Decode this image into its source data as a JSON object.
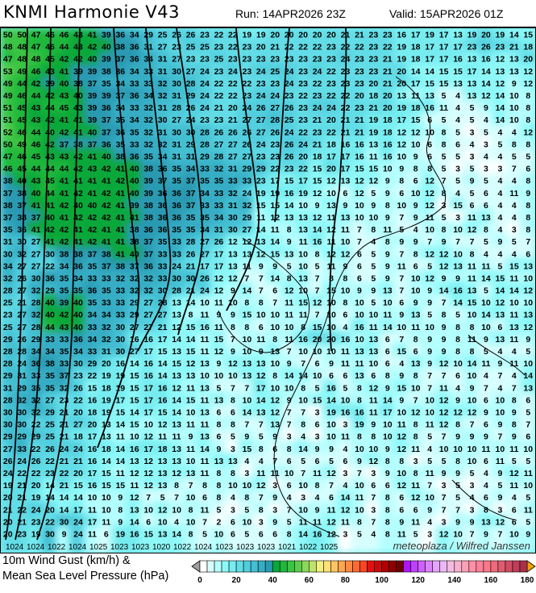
{
  "header": {
    "title": "KNMI Harmonie V43",
    "run": "Run: 14APR2026 23Z",
    "valid": "Valid: 15APR2026 01Z"
  },
  "map": {
    "credit": "meteoplaza / Wilfred Janssen",
    "gust_values_kmh": [
      "50 50 47 46 46 43 41 39 36 34 29 25 26 26 23 22 22 19 19 20 20 20 20 20 21 21 23 23 16 17 19 17 13 19 20 19 14 15",
      "48 48 47 46 44 43 42 40 38 36 31 27 23 25 25 23 22 23 20 21 22 22 22 23 22 22 23 22 19 18 17 17 17 23 26 23 21 18",
      "47 48 48 45 42 42 40 39 37 36 34 31 27 23 23 25 23 23 23 23 23 23 23 23 24 23 23 21 19 18 17 17 16 13 16 12 13 20",
      "53 49 46 43 41 39 39 38 36 34 33 31 30 27 24 23 24 23 24 25 24 23 24 22 23 23 23 21 20 14 14 15 15 17 14 13 13 12",
      "49 44 42 39 40 38 37 35 34 33 33 32 30 28 24 22 22 22 23 23 24 23 22 23 23 23 20 21 20 17 15 15 13 13 14 12 9 12",
      "49 46 44 42 43 40 39 39 37 36 34 32 31 29 24 22 22 23 24 24 23 22 23 22 22 20 18 20 13 11 13 5 4 13 12 14 10 8",
      "51 45 43 44 45 43 39 36 34 33 32 31 28 26 24 21 20 24 26 27 26 23 24 24 22 23 21 20 19 18 16 11 4 5 9 14 10 8",
      "51 45 43 42 41 41 39 37 35 34 32 30 27 24 23 23 21 27 27 28 25 23 21 20 21 21 19 18 17 15 6 5 4 5 4 14 10 8",
      "52 46 44 40 42 41 40 37 36 35 32 31 30 30 28 26 26 26 27 26 24 22 23 22 21 21 19 18 12 12 10 8 5 3 5 4 4 12",
      "50 49 46 42 37 38 37 36 35 33 32 32 31 29 28 27 27 26 24 23 26 24 21 18 16 16 13 16 12 10 6 8 6 4 3 5 8 8",
      "47 46 45 43 43 42 41 40 38 36 35 34 31 31 29 28 27 27 23 23 26 20 18 17 17 16 11 16 10 9 6 5 5 3 4 4 5 5",
      "46 45 44 44 44 42 43 42 41 40 38 36 35 34 33 32 31 29 29 22 23 22 15 20 17 15 15 10 9 8 8 5 3 5 3 3 7 6",
      "38 40 43 45 41 41 41 41 42 40 39 37 35 37 35 35 33 33 23 17 15 17 15 12 13 12 12 9 8 6 12 7 5 9 5 4 4 8",
      "37 38 40 44 41 42 41 42 41 40 39 36 36 37 34 33 32 24 19 19 16 19 12 10 6 12 5 9 6 10 12 8 4 5 6 4 11 9",
      "38 37 41 41 42 40 40 42 41 39 38 36 36 37 33 33 31 32 15 15 14 10 9 13 9 10 9 8 10 9 12 3 15 6 6 4 4 8",
      "37 38 37 40 41 42 42 42 41 41 38 36 36 35 35 34 30 29 11 12 13 13 12 11 13 10 10 9 7 9 11 5 3 11 13 4 4 8",
      "35 36 41 42 42 41 42 41 41 38 36 36 35 35 34 31 30 27 14 11 8 13 14 12 11 7 8 11 5 4 10 8 10 12 8 4 3 8",
      "31 30 27 41 42 41 42 41 41 38 37 35 33 28 27 26 12 12 13 14 9 11 16 11 10 7 4 8 9 9 7 9 7 7 5 9 5 7",
      "30 32 27 30 38 38 37 38 41 40 37 33 33 26 27 17 13 13 12 15 13 10 8 12 12 6 5 9 7 8 12 12 10 8 4 4 4 6",
      "34 27 27 22 34 36 35 37 38 37 36 33 24 21 17 17 13 11 9 9 5 10 5 11 9 6 5 9 11 6 5 12 13 11 11 5 15 13",
      "32 26 30 36 35 34 33 33 32 32 32 33 30 30 26 12 12 7 7 14 8 13 7 8 8 6 5 9 7 10 12 9 9 11 14 15 11 10",
      "28 27 32 29 35 35 36 35 33 32 32 30 28 21 24 12 9 14 7 6 12 10 7 15 10 9 9 13 7 10 9 14 16 13 5 14 14 12",
      "25 21 28 40 39 40 35 33 33 29 27 28 13 14 10 11 10 8 8 7 11 15 12 10 8 10 5 10 6 9 9 7 14 15 10 12 10 10",
      "23 27 32 40 42 40 34 34 33 29 27 27 13 8 11 9 9 15 10 10 11 11 7 10 6 10 10 11 9 13 5 8 5 10 14 13 11 13",
      "25 27 28 44 43 40 33 32 30 27 27 21 12 15 16 11 8 8 6 10 10 8 15 10 4 16 11 14 10 11 10 9 8 8 10 6 13 12",
      "29 26 29 33 33 36 34 32 30 16 16 17 14 14 11 15 7 10 11 8 11 16 20 20 16 10 13 6 7 8 9 9 8 11 9 13 11 9",
      "28 28 34 34 35 34 33 31 30 27 17 15 13 15 11 12 9 10 9 13 7 10 10 10 11 13 13 6 15 6 9 9 8 8 5 4 4 5",
      "28 24 36 38 33 30 29 20 16 14 16 14 15 12 13 9 12 13 13 10 9 7 6 9 11 11 10 6 4 13 9 12 10 14 11 9 11 10",
      "29 31 33 35 37 23 22 19 19 15 16 14 13 13 10 10 10 13 12 8 14 14 10 6 6 13 6 8 9 8 7 7 6 10 4 7 4 14",
      "31 29 35 35 32 26 15 18 19 15 17 16 12 11 13 5 7 7 17 10 10 8 5 16 5 8 12 9 15 10 7 11 4 9 7 4 7 13",
      "28 32 32 27 23 22 16 19 17 15 17 16 14 15 11 13 8 10 14 12 9 10 15 14 10 8 11 14 9 7 10 12 9 10 6 10 8 6",
      "30 30 32 29 21 20 18 19 15 14 17 15 14 10 13 6 6 14 13 12 7 7 3 19 16 16 11 17 10 12 10 12 12 12 9 10 9 5",
      "30 30 22 25 21 27 20 13 14 15 10 12 13 11 11 8 8 7 7 13 7 8 6 10 3 19 9 10 11 8 11 12 8 7 6 9 8 7",
      "29 29 29 25 21 18 17 13 11 10 12 11 11 9 13 6 5 9 5 9 3 4 3 10 11 8 8 10 12 8 5 7 9 9 9 7 9 6",
      "27 33 22 26 24 24 16 18 14 16 17 18 13 11 14 9 3 15 8 6 8 14 9 9 4 10 10 9 12 11 4 10 10 10 11 10 11 10",
      "26 24 26 22 21 21 16 14 14 13 12 13 13 10 11 13 13 4 4 7 6 5 6 5 6 9 12 8 8 3 5 5 8 10 6 11 5 5",
      "24 22 22 23 22 20 17 15 11 12 12 13 12 13 11 8 8 3 11 11 10 7 11 12 3 7 3 9 10 8 11 9 9 5 4 9 12 11",
      "19 21 20 14 21 15 16 15 15 11 12 13 8 7 8 8 10 10 12 3 6 10 8 7 4 10 6 6 12 11 7 3 5 3 4 5 11 10",
      "20 21 19 14 14 14 10 10 9 12 7 5 7 10 6 8 4 8 7 9 4 3 4 6 14 11 7 8 6 12 10 7 5 4 6 9 4 5",
      "21 22 24 20 14 17 11 10 8 13 10 12 10 8 11 5 3 5 8 3 7 10 9 11 12 10 3 8 6 6 9 7 7 3 8 3 6 11",
      "20 21 23 22 30 24 17 11 9 14 6 10 4 10 7 2 6 10 3 9 5 11 11 12 11 8 7 8 9 11 4 3 9 9 13 12 6 5",
      "20 23 19 30 9 24 11 6 19 16 15 13 14 8 5 10 6 5 6 6 8 14 16 12 3 5 4 8 11 5 3 12 10 7 9 7 10 9"
    ],
    "isobar_labels": [
      "1024",
      "1024",
      "1022",
      "1024",
      "1025",
      "1023",
      "1023",
      "1020",
      "1022",
      "1024",
      "1023",
      "1023",
      "1023",
      "1021",
      "1022",
      "1025"
    ]
  },
  "legend": {
    "line1": "10m Wind Gust (km/h) &",
    "line2": "Mean Sea Level Pressure (hPa)",
    "unit": "km/h",
    "bin_width": 4,
    "min": 0,
    "max": 180,
    "ticks": [
      "0",
      "20",
      "40",
      "60",
      "80",
      "100",
      "120",
      "140",
      "160",
      "180"
    ],
    "colors": [
      "#ffffff",
      "#d8ffff",
      "#b4ffff",
      "#8ef8f8",
      "#76ecf0",
      "#62dce6",
      "#52cede",
      "#44bfd2",
      "#36adc4",
      "#2a9ab2",
      "#0aa83a",
      "#20b83c",
      "#3cc444",
      "#5ccc4c",
      "#8cd85a",
      "#bce46a",
      "#f0f080",
      "#ffe07a",
      "#ffc464",
      "#ffa650",
      "#ff8a44",
      "#ff6a34",
      "#ff4424",
      "#e41010",
      "#cc0808",
      "#b00000",
      "#900000",
      "#700000",
      "#b014ff",
      "#c040ff",
      "#d060ff",
      "#dc84ff",
      "#e6a4ff",
      "#eeb8f4",
      "#f4bce0",
      "#f8b0cc",
      "#fca0b8",
      "#ff90a8",
      "#ff8098",
      "#f8788a",
      "#ee6a7c",
      "#e05c70",
      "#d04c64",
      "#c03c58",
      "#a8304c"
    ],
    "under_color": "#a0a0a0",
    "over_color": "#f0a000"
  }
}
